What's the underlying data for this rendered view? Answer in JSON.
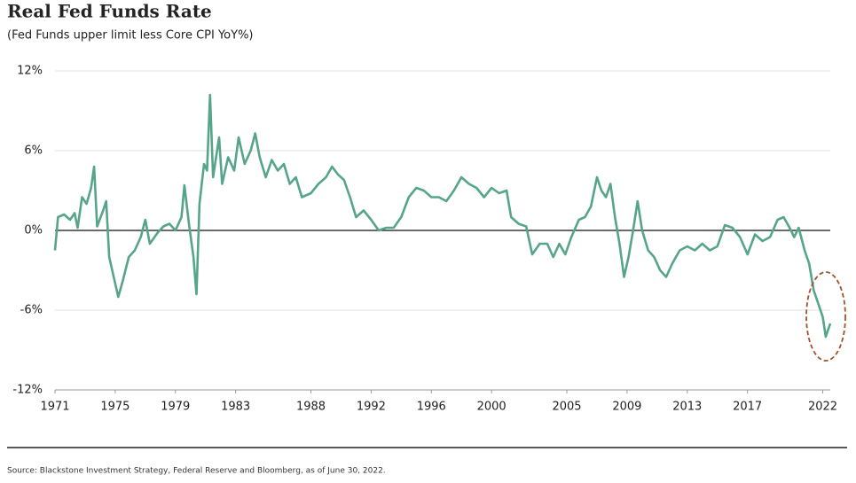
{
  "chart_data": {
    "type": "line",
    "title": "Real Fed Funds Rate",
    "subtitle": "(Fed Funds upper limit less Core CPI YoY%)",
    "source": "Source: Blackstone Investment Strategy, Federal Reserve and Bloomberg, as of June 30, 2022.",
    "x": [
      1971.0,
      1971.2,
      1971.6,
      1972.0,
      1972.3,
      1972.5,
      1972.8,
      1973.1,
      1973.4,
      1973.6,
      1973.8,
      1974.2,
      1974.4,
      1974.6,
      1974.9,
      1975.2,
      1975.5,
      1975.9,
      1976.3,
      1976.7,
      1977.0,
      1977.3,
      1977.8,
      1978.2,
      1978.6,
      1979.0,
      1979.4,
      1979.6,
      1979.9,
      1980.2,
      1980.4,
      1980.6,
      1980.9,
      1981.1,
      1981.3,
      1981.5,
      1981.9,
      1982.1,
      1982.5,
      1982.9,
      1983.2,
      1983.6,
      1984.0,
      1984.3,
      1984.6,
      1985.0,
      1985.4,
      1985.8,
      1986.2,
      1986.6,
      1987.0,
      1987.4,
      1988.0,
      1988.5,
      1989.0,
      1989.4,
      1989.8,
      1990.2,
      1990.6,
      1991.0,
      1991.5,
      1992.0,
      1992.5,
      1993.0,
      1993.5,
      1994.0,
      1994.5,
      1995.0,
      1995.5,
      1996.0,
      1996.5,
      1997.0,
      1997.5,
      1998.0,
      1998.5,
      1999.0,
      1999.5,
      2000.0,
      2000.5,
      2001.0,
      2001.3,
      2001.8,
      2002.3,
      2002.7,
      2003.2,
      2003.7,
      2004.1,
      2004.5,
      2004.9,
      2005.3,
      2005.8,
      2006.2,
      2006.6,
      2007.0,
      2007.3,
      2007.6,
      2007.9,
      2008.2,
      2008.5,
      2008.8,
      2009.1,
      2009.4,
      2009.7,
      2010.0,
      2010.4,
      2010.8,
      2011.2,
      2011.6,
      2012.0,
      2012.5,
      2013.0,
      2013.5,
      2014.0,
      2014.5,
      2015.0,
      2015.5,
      2016.0,
      2016.5,
      2017.0,
      2017.5,
      2018.0,
      2018.5,
      2019.0,
      2019.4,
      2019.8,
      2020.1,
      2020.4,
      2020.8,
      2021.1,
      2021.4,
      2021.7,
      2022.0,
      2022.2,
      2022.5
    ],
    "series": [
      {
        "color": "#56a58a",
        "values": [
          -1.5,
          1.0,
          1.2,
          0.8,
          1.3,
          0.2,
          2.5,
          2.0,
          3.2,
          4.8,
          0.3,
          1.5,
          2.2,
          -2.0,
          -3.5,
          -5.0,
          -3.8,
          -2.0,
          -1.5,
          -0.5,
          0.8,
          -1.0,
          -0.2,
          0.3,
          0.5,
          0.0,
          1.0,
          3.4,
          0.5,
          -2.0,
          -4.8,
          2.0,
          5.0,
          4.5,
          10.2,
          4.0,
          7.0,
          3.5,
          5.5,
          4.5,
          7.0,
          5.0,
          6.0,
          7.3,
          5.5,
          4.0,
          5.3,
          4.5,
          5.0,
          3.5,
          4.0,
          2.5,
          2.8,
          3.5,
          4.0,
          4.8,
          4.2,
          3.8,
          2.5,
          1.0,
          1.5,
          0.8,
          0.0,
          0.2,
          0.2,
          1.0,
          2.5,
          3.2,
          3.0,
          2.5,
          2.5,
          2.2,
          3.0,
          4.0,
          3.5,
          3.2,
          2.5,
          3.2,
          2.8,
          3.0,
          1.0,
          0.5,
          0.3,
          -1.8,
          -1.0,
          -1.0,
          -2.0,
          -1.0,
          -1.8,
          -0.5,
          0.8,
          1.0,
          1.8,
          4.0,
          3.0,
          2.5,
          3.5,
          1.0,
          -1.0,
          -3.5,
          -2.0,
          0.0,
          2.2,
          0.0,
          -1.5,
          -2.0,
          -3.0,
          -3.5,
          -2.5,
          -1.5,
          -1.2,
          -1.5,
          -1.0,
          -1.5,
          -1.2,
          0.4,
          0.2,
          -0.5,
          -1.8,
          -0.3,
          -0.8,
          -0.5,
          0.8,
          1.0,
          0.2,
          -0.5,
          0.2,
          -1.5,
          -2.5,
          -4.5,
          -5.5,
          -6.5,
          -8.0,
          -7.0
        ]
      }
    ],
    "xlim": [
      1971,
      2022.5
    ],
    "xticks": [
      1971,
      1975,
      1979,
      1983,
      1988,
      1992,
      1996,
      2000,
      2005,
      2009,
      2013,
      2017,
      2022
    ],
    "ylim": [
      -12,
      12
    ],
    "yticks": [
      {
        "value": -12,
        "label": "-12%"
      },
      {
        "value": -6,
        "label": "-6%"
      },
      {
        "value": 0,
        "label": "0%"
      },
      {
        "value": 6,
        "label": "6%"
      },
      {
        "value": 12,
        "label": "12%"
      }
    ],
    "grid": true
  }
}
